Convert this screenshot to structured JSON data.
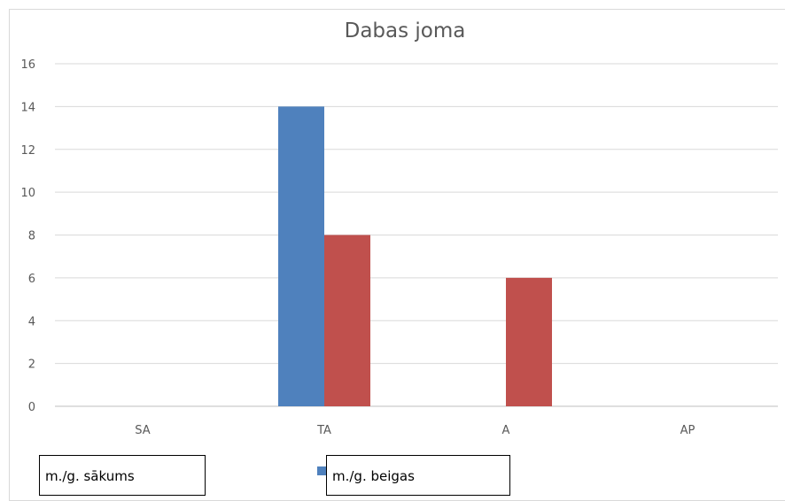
{
  "chart_data": {
    "type": "bar",
    "title": "Dabas joma",
    "categories": [
      "SA",
      "TA",
      "A",
      "AP"
    ],
    "series": [
      {
        "name": "m./g. sākums",
        "color": "#4f81bd",
        "values": [
          0,
          14,
          0,
          0
        ]
      },
      {
        "name": "m./g. beigas",
        "color": "#c0504d",
        "values": [
          0,
          8,
          6,
          0
        ]
      }
    ],
    "ylim": [
      0,
      16
    ],
    "yticks": [
      0,
      2,
      4,
      6,
      8,
      10,
      12,
      14,
      16
    ],
    "grid": true,
    "legend_position": "bottom",
    "xlabel": "",
    "ylabel": ""
  }
}
